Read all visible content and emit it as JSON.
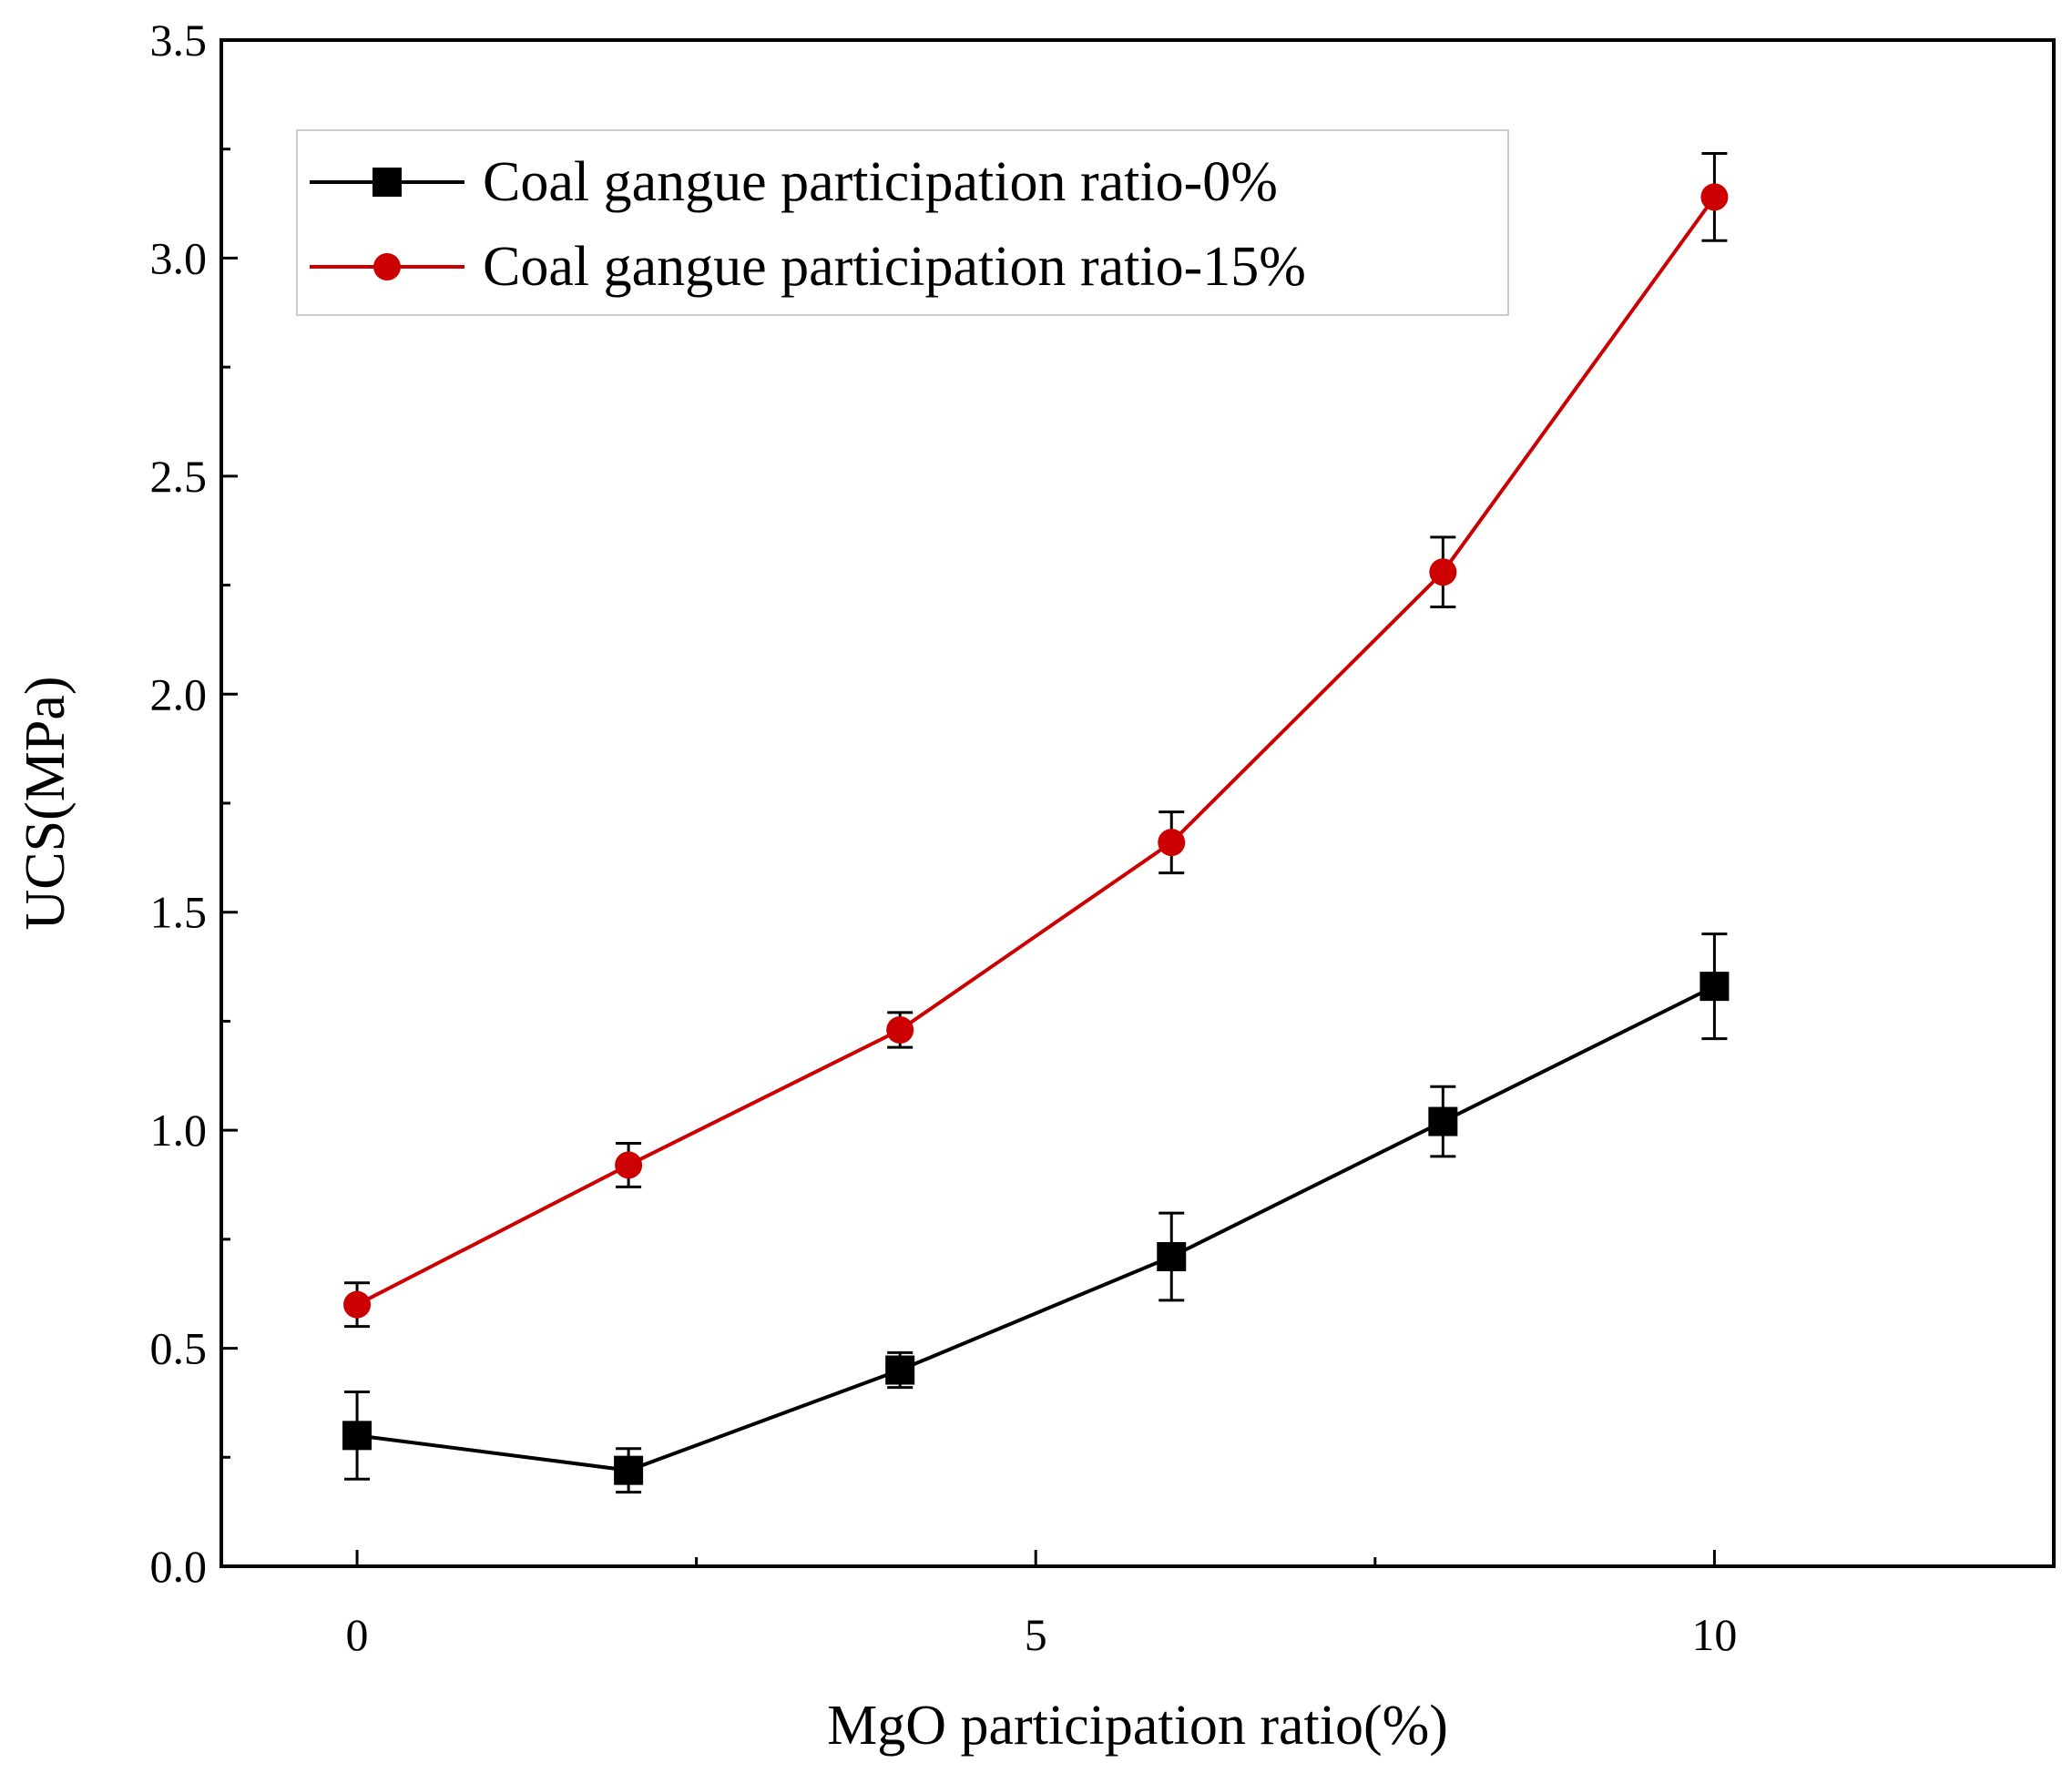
{
  "chart_data": {
    "type": "line",
    "title": "",
    "xlabel": "MgO participation ratio(%)",
    "ylabel": "UCS(MPa)",
    "xlim": [
      -1,
      12.5
    ],
    "ylim": [
      0,
      3.5
    ],
    "xticks": [
      0,
      5,
      10
    ],
    "xtick_labels": [
      "0",
      "5",
      "10"
    ],
    "yticks": [
      0.0,
      0.5,
      1.0,
      1.5,
      2.0,
      2.5,
      3.0,
      3.5
    ],
    "ytick_labels": [
      "0.0",
      "0.5",
      "1.0",
      "1.5",
      "2.0",
      "2.5",
      "3.0",
      "3.5"
    ],
    "grid": false,
    "legend_position": "top-left",
    "x": [
      0,
      2,
      4,
      6,
      8,
      10
    ],
    "series": [
      {
        "name": "Coal gangue participation ratio-0%",
        "color": "#000000",
        "marker": "square",
        "values": [
          0.3,
          0.22,
          0.45,
          0.71,
          1.02,
          1.33
        ],
        "errors": [
          0.1,
          0.05,
          0.04,
          0.1,
          0.08,
          0.12
        ]
      },
      {
        "name": "Coal gangue participation ratio-15%",
        "color": "#cc0000",
        "marker": "circle",
        "values": [
          0.6,
          0.92,
          1.23,
          1.66,
          2.28,
          3.14
        ],
        "errors": [
          0.05,
          0.05,
          0.04,
          0.07,
          0.08,
          0.1
        ]
      }
    ]
  }
}
